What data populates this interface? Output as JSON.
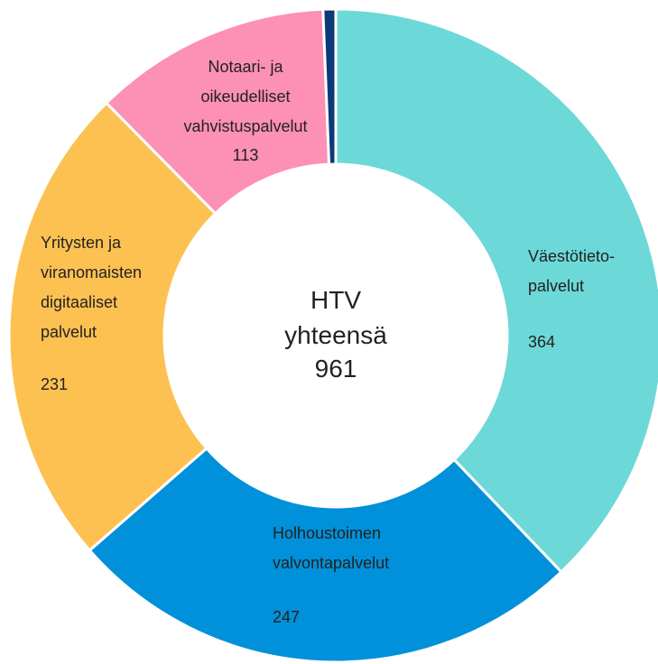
{
  "chart_data": {
    "type": "donut",
    "categories": [
      "Väestötieto-\npalvelut",
      "Holhoustoimen\nvalvontapalvelut",
      "Yritysten ja\nviranomaisten\ndigitaaliset\npalvelut",
      "Notaari- ja\noikeudelliset\nvahvistuspalvelut",
      null
    ],
    "values": [
      364,
      247,
      231,
      113,
      6
    ],
    "colors": [
      "#6dd8d8",
      "#0091da",
      "#fdc152",
      "#fc90b5",
      "#0c3a78"
    ],
    "center_text": [
      "HTV",
      "yhteensä"
    ],
    "total": 961
  }
}
